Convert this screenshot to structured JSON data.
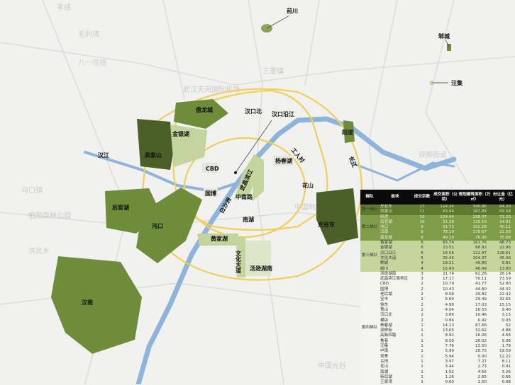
{
  "colors": {
    "tier1": "#4b6027",
    "tier2": "#6f8c3b",
    "tier3": "#c3d59d",
    "river": "#8fb4da",
    "ring": "#f0cf5a"
  },
  "background_labels": [
    "孝感",
    "武汉天河国际机场",
    "柏阳森林公园",
    "中国地质大学",
    "马口镇",
    "八一农场",
    "毛利湾",
    "三里镇",
    "双柳街道",
    "洪北乡",
    "中国光谷"
  ],
  "map_labels": {
    "qianchuan": "前川",
    "zhucheng": "邾城",
    "wangji": "汪集",
    "panlongcheng": "盘龙城",
    "hankoubei": "汉口北",
    "hankouyanjiang": "汉口沿江",
    "jinyinhu": "金银湖",
    "wujiashan": "吴家山",
    "yangluo": "阳逻",
    "cbd": "CBD",
    "gongrencun": "工人村",
    "yangchunhu": "杨春湖",
    "wuchangbinjiang": "武昌滨江",
    "huashan": "花山",
    "zhongnanlu": "中南路",
    "guobo": "国博",
    "baishazhou": "白沙洲",
    "nanhu": "南湖",
    "huangjiahu": "黄家湖",
    "houguanhu": "后官湖",
    "zhuankou": "沌口",
    "guanggudong": "光谷东",
    "wenhuadadao": "文化大道",
    "tangxunhunan": "汤逊湖南",
    "hannan": "汉南",
    "hanjiang": "汉江",
    "changjiang": "长江"
  },
  "table": {
    "headers": [
      "梯队",
      "板块",
      "成交宗数",
      "成交面积（公顷）",
      "规划建筑面积（万㎡）",
      "出让金（亿元）"
    ],
    "groups": [
      {
        "tier": "第一梯队",
        "cls": "t1",
        "rows": [
          [
            "光谷东",
            "17",
            "114.24",
            "340.96",
            "94.20"
          ],
          [
            "吴家山",
            "11",
            "63.94",
            "167.89",
            "69.58"
          ]
        ]
      },
      {
        "tier": "第二梯队",
        "cls": "t2",
        "rows": [
          [
            "阳逻",
            "10",
            "124.44",
            "288.37",
            "71.23"
          ],
          [
            "后官湖",
            "10",
            "51.28",
            "129.53",
            "34.91"
          ],
          [
            "沌口",
            "9",
            "51.71",
            "102.28",
            "40.11"
          ],
          [
            "汉南",
            "8",
            "78.19",
            "178.67",
            "21.50"
          ],
          [
            "盘龙城",
            "8",
            "49.20",
            "76.96",
            "35.88"
          ]
        ]
      },
      {
        "tier": "第三梯队",
        "cls": "t3",
        "rows": [
          [
            "黄家湖",
            "6",
            "65.74",
            "161.76",
            "48.73"
          ],
          [
            "金银湖",
            "6",
            "23.51",
            "68.92",
            "22.96"
          ],
          [
            "汉口沿江",
            "6",
            "16.56",
            "122.87",
            "128.61"
          ],
          [
            "文化大道",
            "5",
            "26.45",
            "104.37",
            "45.06"
          ],
          [
            "邾城",
            "4",
            "19.21",
            "49.86",
            "9.81"
          ],
          [
            "前川",
            "4",
            "15.40",
            "48.49",
            "13.80"
          ]
        ]
      },
      {
        "tier": "第四梯队",
        "cls": "t4",
        "rows": [
          [
            "汤逊湖南",
            "3",
            "21.74",
            "62.26",
            "26.14"
          ],
          [
            "武昌滨江商务区",
            "3",
            "17.17",
            "70.11",
            "73.59"
          ],
          [
            "CBD",
            "2",
            "10.79",
            "41.77",
            "52.80"
          ],
          [
            "国博",
            "2",
            "10.43",
            "44.80",
            "44.02"
          ],
          [
            "老后湖",
            "2",
            "8.08",
            "29.82",
            "22.42"
          ],
          [
            "宝丰",
            "2",
            "6.60",
            "29.49",
            "32.65"
          ],
          [
            "徐东",
            "2",
            "4.98",
            "17.03",
            "15.15"
          ],
          [
            "青山",
            "2",
            "4.04",
            "16.55",
            "9.40"
          ],
          [
            "汉口北",
            "2",
            "3.86",
            "10.46",
            "3.15"
          ],
          [
            "横店",
            "2",
            "0.84",
            "0.42",
            "0.93"
          ],
          [
            "杨春湖",
            "1",
            "14.13",
            "87.66",
            "52"
          ],
          [
            "双柳街",
            "1",
            "13.05",
            "32.62",
            "4.88"
          ],
          [
            "高新四路",
            "1",
            "8.92",
            "16.06",
            "4.68"
          ],
          [
            "鲁巷",
            "1",
            "8.50",
            "26.02",
            "9.08"
          ],
          [
            "汪集",
            "1",
            "7.76",
            "13.50",
            "1.79"
          ],
          [
            "中南",
            "1",
            "5.99",
            "28.75",
            "19.59"
          ],
          [
            "常青",
            "1",
            "5.94",
            "0.00",
            "12.22"
          ],
          [
            "古田",
            "1",
            "3.97",
            "7.27",
            "8.11"
          ],
          [
            "花山",
            "1",
            "3.44",
            "2.73",
            "0.41"
          ],
          [
            "南湖",
            "1",
            "1.52",
            "4.56",
            "3.26"
          ],
          [
            "新后湖",
            "1",
            "1.26",
            "2.65",
            "0.66"
          ],
          [
            "王家湾",
            "1",
            "0.60",
            "1.50",
            "0.08"
          ]
        ]
      }
    ]
  }
}
